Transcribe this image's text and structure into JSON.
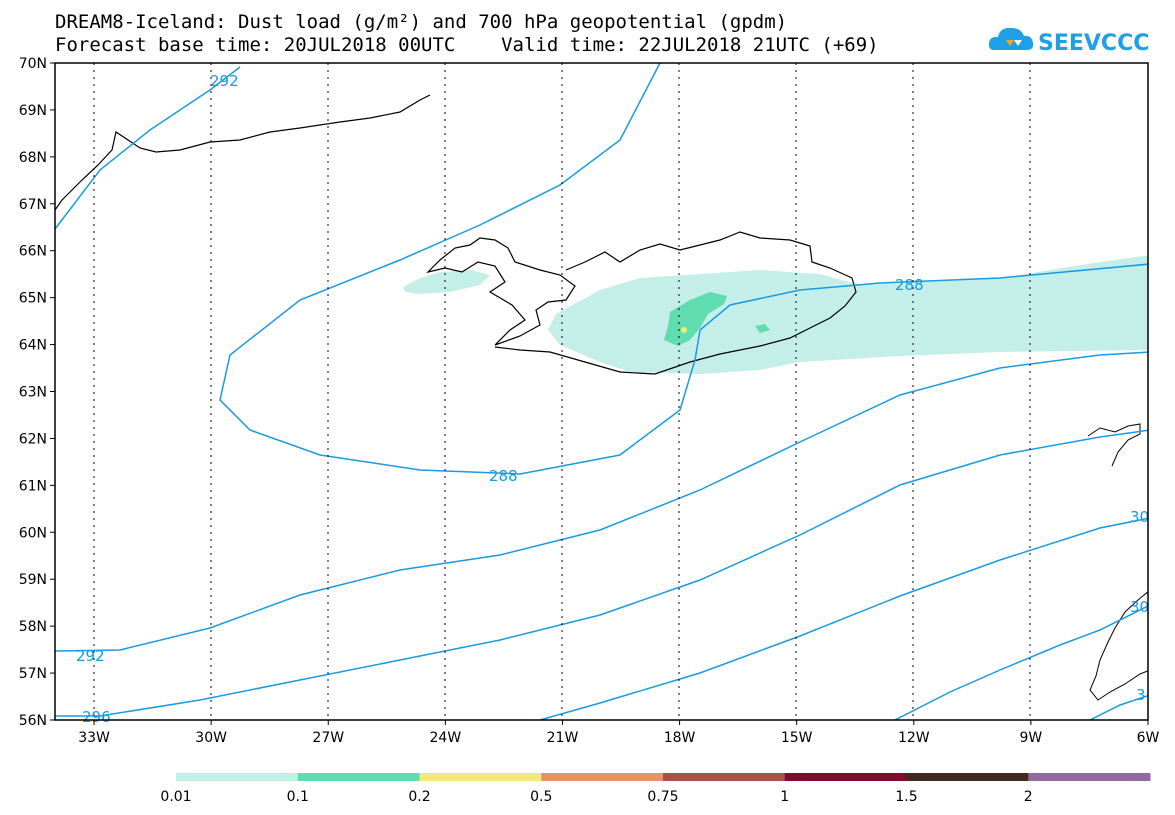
{
  "title_line1": "DREAM8-Iceland: Dust load (g/m²) and 700 hPa geopotential (gpdm)",
  "title_line2": "Forecast base time: 20JUL2018 00UTC    Valid time: 22JUL2018 21UTC (+69)",
  "logo": {
    "text": "SEEVCCC",
    "icon": "cloud-logo-icon",
    "color": "#1ea0e6"
  },
  "map": {
    "lon_range": [
      -34,
      -6
    ],
    "lat_range": [
      56,
      70
    ],
    "lon_ticks": [
      "33W",
      "30W",
      "27W",
      "24W",
      "21W",
      "18W",
      "15W",
      "12W",
      "9W",
      "6W"
    ],
    "lat_ticks": [
      "70N",
      "69N",
      "68N",
      "67N",
      "66N",
      "65N",
      "64N",
      "63N",
      "62N",
      "61N",
      "60N",
      "59N",
      "58N",
      "57N",
      "56N"
    ],
    "grid": true,
    "contour_color": "#1a9ae0",
    "contour_labels": [
      "292",
      "288",
      "288",
      "292",
      "296",
      "30",
      "30",
      "3"
    ]
  },
  "colorbar": {
    "labels": [
      "0.01",
      "0.1",
      "0.2",
      "0.5",
      "0.75",
      "1",
      "1.5",
      "2"
    ],
    "colors": [
      "#c4efe8",
      "#5fdcb0",
      "#f3e97a",
      "#e8926c",
      "#a65248",
      "#7f0c2d",
      "#3e2a1e",
      "#94699f"
    ]
  }
}
